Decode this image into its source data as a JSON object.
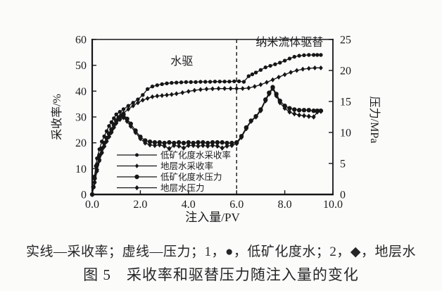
{
  "figure": {
    "captions": {
      "key": "实线—采收率；虚线—压力；1，●，低矿化度水；2，◆，地层水",
      "title": "图 5　采收率和驱替压力随注入量的变化"
    }
  },
  "chart_data": {
    "type": "line",
    "title": "图5 采收率和驱替压力随注入量的变化",
    "xlabel": "注入量/PV",
    "ylabel_left": "采收率/%",
    "ylabel_right": "压力/MPa",
    "xlim": [
      0,
      10
    ],
    "ylim_left": [
      0,
      60
    ],
    "ylim_right": [
      0,
      25
    ],
    "grid": false,
    "legend_position": "inside-lower-left",
    "stage_divider_x": 6.0,
    "x_ticks": [
      {
        "v": 0,
        "label": "0.0"
      },
      {
        "v": 2,
        "label": "2.0"
      },
      {
        "v": 4,
        "label": "4.0"
      },
      {
        "v": 6,
        "label": "6.0"
      },
      {
        "v": 8,
        "label": "8.0"
      },
      {
        "v": 10,
        "label": "10.0"
      }
    ],
    "y_ticks_left": [
      {
        "v": 0,
        "label": "0"
      },
      {
        "v": 10,
        "label": "10"
      },
      {
        "v": 20,
        "label": "20"
      },
      {
        "v": 30,
        "label": "30"
      },
      {
        "v": 40,
        "label": "40"
      },
      {
        "v": 50,
        "label": "50"
      },
      {
        "v": 60,
        "label": "60"
      }
    ],
    "y_ticks_right": [
      {
        "v": 0,
        "label": "0"
      },
      {
        "v": 5,
        "label": "5"
      },
      {
        "v": 10,
        "label": "10"
      },
      {
        "v": 15,
        "label": "15"
      },
      {
        "v": 20,
        "label": "20"
      },
      {
        "v": 25,
        "label": "25"
      }
    ],
    "annotations": [
      {
        "text": "水驱",
        "x": 3.72,
        "y": 50.2
      },
      {
        "text": "纳米流体驱替",
        "x": 8.2,
        "y": 57.5
      }
    ],
    "legend": [
      {
        "label": "低矿化度水采收率",
        "marker": "circle",
        "size": 2.5
      },
      {
        "label": "地层水采收率",
        "marker": "diamond",
        "size": 2.7
      },
      {
        "label": "低矿化度水压力",
        "marker": "circle",
        "size": 3.2
      },
      {
        "label": "地层水压力",
        "marker": "diamond",
        "size": 3.0
      }
    ],
    "series": [
      {
        "id": "low-salinity-recovery",
        "name": "低矿化度水采收率",
        "axis": "left",
        "unit": "%",
        "marker": "circle",
        "marker_size": 2.7,
        "points": [
          [
            0,
            0
          ],
          [
            0.05,
            3
          ],
          [
            0.1,
            7
          ],
          [
            0.15,
            11
          ],
          [
            0.2,
            14
          ],
          [
            0.3,
            17.5
          ],
          [
            0.4,
            20.5
          ],
          [
            0.5,
            22.5
          ],
          [
            0.6,
            24.5
          ],
          [
            0.7,
            26.5
          ],
          [
            0.8,
            28
          ],
          [
            0.9,
            29.5
          ],
          [
            1.0,
            31
          ],
          [
            1.15,
            32
          ],
          [
            1.3,
            33
          ],
          [
            1.5,
            34.3
          ],
          [
            1.7,
            35.5
          ],
          [
            1.9,
            36.8
          ],
          [
            2.1,
            38.5
          ],
          [
            2.3,
            40.8
          ],
          [
            2.5,
            41.8
          ],
          [
            2.7,
            42.3
          ],
          [
            2.9,
            42.7
          ],
          [
            3.1,
            43
          ],
          [
            3.3,
            43.2
          ],
          [
            3.5,
            43.3
          ],
          [
            3.7,
            43.4
          ],
          [
            3.9,
            43.5
          ],
          [
            4.1,
            43.5
          ],
          [
            4.3,
            43.5
          ],
          [
            4.5,
            43.6
          ],
          [
            4.7,
            43.6
          ],
          [
            4.9,
            43.6
          ],
          [
            5.1,
            43.7
          ],
          [
            5.3,
            43.7
          ],
          [
            5.5,
            43.7
          ],
          [
            5.7,
            43.7
          ],
          [
            5.9,
            43.8
          ],
          [
            6.1,
            43.8
          ],
          [
            6.3,
            43.6
          ],
          [
            6.5,
            45.8
          ],
          [
            6.65,
            46.5
          ],
          [
            6.8,
            47.2
          ],
          [
            7.0,
            48.2
          ],
          [
            7.2,
            49.2
          ],
          [
            7.4,
            49.8
          ],
          [
            7.6,
            50.4
          ],
          [
            7.8,
            51
          ],
          [
            8.0,
            51.8
          ],
          [
            8.2,
            52.6
          ],
          [
            8.4,
            53.3
          ],
          [
            8.6,
            53.7
          ],
          [
            8.8,
            53.9
          ],
          [
            9.0,
            54
          ],
          [
            9.2,
            54
          ],
          [
            9.35,
            54
          ],
          [
            9.5,
            54
          ]
        ]
      },
      {
        "id": "formation-water-recovery",
        "name": "地层水采收率",
        "axis": "left",
        "unit": "%",
        "marker": "diamond",
        "marker_size": 2.9,
        "points": [
          [
            0,
            0
          ],
          [
            0.1,
            4.5
          ],
          [
            0.2,
            9
          ],
          [
            0.3,
            13
          ],
          [
            0.4,
            16
          ],
          [
            0.5,
            18.5
          ],
          [
            0.6,
            20.5
          ],
          [
            0.7,
            22.5
          ],
          [
            0.8,
            24.5
          ],
          [
            0.9,
            26.5
          ],
          [
            1.0,
            28.5
          ],
          [
            1.15,
            30
          ],
          [
            1.3,
            31.5
          ],
          [
            1.5,
            33
          ],
          [
            1.7,
            34.3
          ],
          [
            1.9,
            35.5
          ],
          [
            2.1,
            36.5
          ],
          [
            2.3,
            37.2
          ],
          [
            2.5,
            37.8
          ],
          [
            2.7,
            38.1
          ],
          [
            2.9,
            38.3
          ],
          [
            3.1,
            38.5
          ],
          [
            3.3,
            38.7
          ],
          [
            3.5,
            39
          ],
          [
            3.75,
            39.4
          ],
          [
            4.0,
            39.9
          ],
          [
            4.25,
            40.3
          ],
          [
            4.5,
            40.6
          ],
          [
            4.75,
            40.8
          ],
          [
            5.0,
            40.9
          ],
          [
            5.25,
            41
          ],
          [
            5.5,
            41
          ],
          [
            5.75,
            41
          ],
          [
            6.0,
            41
          ],
          [
            6.25,
            41
          ],
          [
            6.5,
            41.2
          ],
          [
            6.75,
            41.8
          ],
          [
            7.0,
            42.5
          ],
          [
            7.25,
            43.4
          ],
          [
            7.5,
            44.4
          ],
          [
            7.75,
            45.4
          ],
          [
            8.0,
            46.4
          ],
          [
            8.25,
            47.3
          ],
          [
            8.5,
            48
          ],
          [
            8.75,
            48.5
          ],
          [
            9.0,
            48.8
          ],
          [
            9.25,
            49
          ],
          [
            9.5,
            49
          ]
        ]
      },
      {
        "id": "low-salinity-pressure",
        "name": "低矿化度水压力",
        "axis": "right",
        "unit": "MPa",
        "marker": "circle",
        "marker_size": 3.2,
        "points": [
          [
            0,
            0
          ],
          [
            0.05,
            1.2
          ],
          [
            0.1,
            2.6
          ],
          [
            0.2,
            4.8
          ],
          [
            0.3,
            6.3
          ],
          [
            0.4,
            7.4
          ],
          [
            0.5,
            8.3
          ],
          [
            0.6,
            9.1
          ],
          [
            0.7,
            9.8
          ],
          [
            0.8,
            10.5
          ],
          [
            0.9,
            11.3
          ],
          [
            1.0,
            11.9
          ],
          [
            1.1,
            12.4
          ],
          [
            1.2,
            12.7
          ],
          [
            1.3,
            12.9
          ],
          [
            1.45,
            12.2
          ],
          [
            1.6,
            11.4
          ],
          [
            1.8,
            10.3
          ],
          [
            2.0,
            9.3
          ],
          [
            2.2,
            8.7
          ],
          [
            2.4,
            8.5
          ],
          [
            2.6,
            8.4
          ],
          [
            2.8,
            8.4
          ],
          [
            3.0,
            8.3
          ],
          [
            3.2,
            8.4
          ],
          [
            3.4,
            8.3
          ],
          [
            3.6,
            8.4
          ],
          [
            3.8,
            8.3
          ],
          [
            4.0,
            8.4
          ],
          [
            4.2,
            8.3
          ],
          [
            4.4,
            8.4
          ],
          [
            4.6,
            8.4
          ],
          [
            4.8,
            8.3
          ],
          [
            5.0,
            8.4
          ],
          [
            5.2,
            8.4
          ],
          [
            5.4,
            8.4
          ],
          [
            5.6,
            8.3
          ],
          [
            5.8,
            8.3
          ],
          [
            6.0,
            8.4
          ],
          [
            6.2,
            9.4
          ],
          [
            6.4,
            10.8
          ],
          [
            6.6,
            11.9
          ],
          [
            6.8,
            12.6
          ],
          [
            7.0,
            13.7
          ],
          [
            7.2,
            15.3
          ],
          [
            7.35,
            16.4
          ],
          [
            7.5,
            17.3
          ],
          [
            7.65,
            16.2
          ],
          [
            7.8,
            15.1
          ],
          [
            8.0,
            14.3
          ],
          [
            8.2,
            13.9
          ],
          [
            8.4,
            13.7
          ],
          [
            8.6,
            13.6
          ],
          [
            8.8,
            13.6
          ],
          [
            9.0,
            13.6
          ],
          [
            9.2,
            13.5
          ],
          [
            9.35,
            13.5
          ],
          [
            9.5,
            13.5
          ]
        ]
      },
      {
        "id": "formation-water-pressure",
        "name": "地层水压力",
        "axis": "right",
        "unit": "MPa",
        "marker": "diamond",
        "marker_size": 3.1,
        "points": [
          [
            0,
            0
          ],
          [
            0.1,
            2.0
          ],
          [
            0.2,
            4.0
          ],
          [
            0.3,
            5.6
          ],
          [
            0.4,
            6.8
          ],
          [
            0.5,
            7.8
          ],
          [
            0.6,
            8.6
          ],
          [
            0.7,
            9.3
          ],
          [
            0.8,
            10.0
          ],
          [
            0.9,
            10.8
          ],
          [
            1.0,
            11.5
          ],
          [
            1.15,
            12.1
          ],
          [
            1.3,
            12.4
          ],
          [
            1.45,
            11.8
          ],
          [
            1.6,
            11.0
          ],
          [
            1.8,
            10.0
          ],
          [
            2.0,
            9.0
          ],
          [
            2.2,
            8.3
          ],
          [
            2.4,
            8.0
          ],
          [
            2.6,
            7.9
          ],
          [
            2.8,
            8.0
          ],
          [
            3.0,
            7.8
          ],
          [
            3.2,
            7.4
          ],
          [
            3.4,
            7.9
          ],
          [
            3.6,
            7.8
          ],
          [
            3.8,
            7.5
          ],
          [
            4.0,
            7.9
          ],
          [
            4.2,
            7.9
          ],
          [
            4.4,
            7.8
          ],
          [
            4.6,
            7.9
          ],
          [
            4.8,
            7.8
          ],
          [
            5.0,
            7.9
          ],
          [
            5.2,
            7.8
          ],
          [
            5.4,
            7.5
          ],
          [
            5.6,
            7.8
          ],
          [
            5.8,
            7.9
          ],
          [
            6.0,
            8.2
          ],
          [
            6.2,
            9.2
          ],
          [
            6.4,
            10.6
          ],
          [
            6.6,
            11.8
          ],
          [
            6.8,
            12.5
          ],
          [
            7.0,
            13.5
          ],
          [
            7.2,
            15.1
          ],
          [
            7.35,
            16.2
          ],
          [
            7.5,
            17.1
          ],
          [
            7.65,
            15.9
          ],
          [
            7.8,
            14.8
          ],
          [
            8.0,
            13.9
          ],
          [
            8.2,
            13.3
          ],
          [
            8.4,
            13.0
          ],
          [
            8.6,
            12.8
          ],
          [
            8.8,
            12.7
          ],
          [
            9.0,
            12.6
          ],
          [
            9.2,
            12.5
          ],
          [
            9.35,
            13.3
          ],
          [
            9.5,
            13.4
          ]
        ]
      }
    ],
    "colors": {
      "ink": "#161616",
      "background": "#fbfbfa"
    }
  }
}
